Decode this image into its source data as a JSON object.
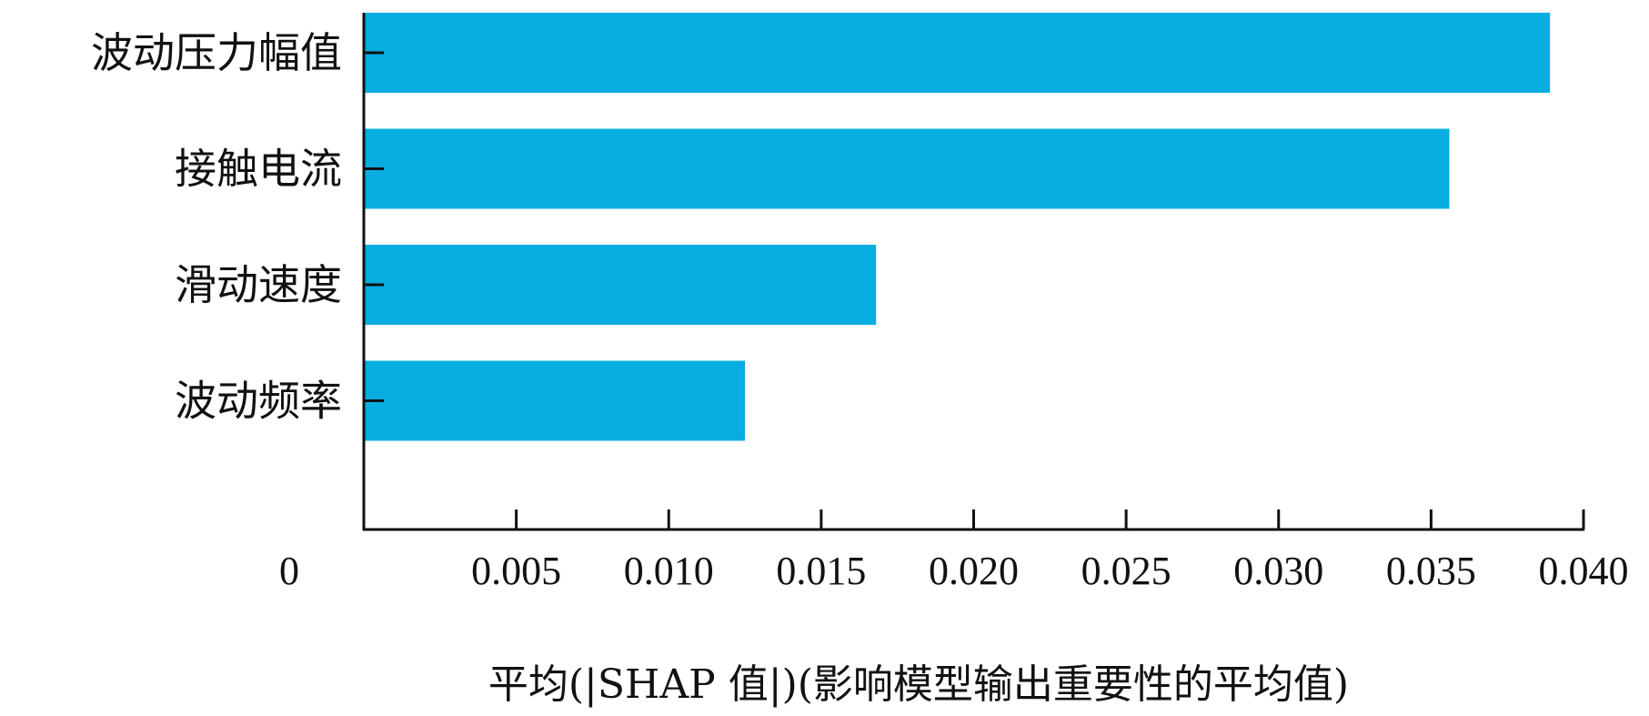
{
  "chart_data": {
    "type": "bar",
    "orientation": "horizontal",
    "categories": [
      "波动压力幅值",
      "接触电流",
      "滑动速度",
      "波动频率"
    ],
    "values": [
      0.0389,
      0.0356,
      0.0168,
      0.0125
    ],
    "xlabel": "平均(|SHAP 值|)(影响模型输出重要性的平均值)",
    "xlim": [
      0,
      0.04
    ],
    "xticks": [
      "0",
      "0.005",
      "0.010",
      "0.015",
      "0.020",
      "0.025",
      "0.030",
      "0.035",
      "0.040"
    ],
    "bar_color": "#07AEDF",
    "grid": false
  }
}
